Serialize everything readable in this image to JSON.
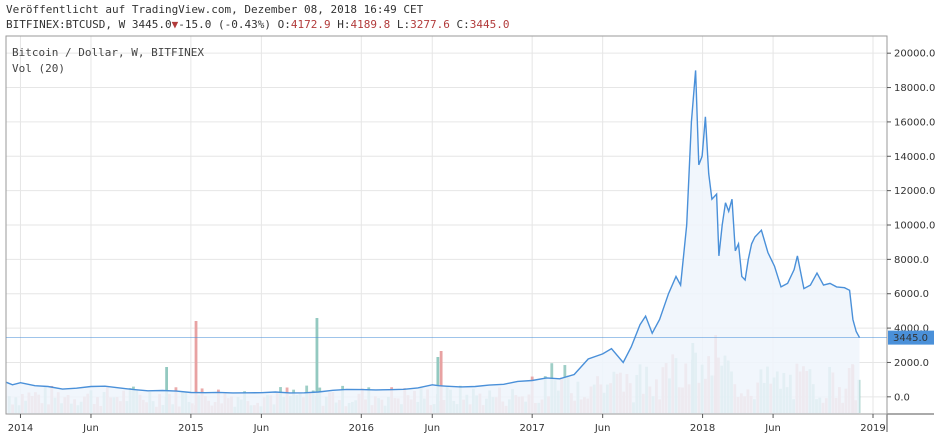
{
  "header": {
    "published": "Veröffentlicht auf TradingView.com, Dezember 08, 2018 16:49 CET",
    "symbol": "BITFINEX:BTCUSD",
    "interval": "W",
    "last": "3445.0",
    "change": "-15.0",
    "change_pct": "(-0.43%)",
    "open_label": "O:",
    "open": "4172.9",
    "high_label": "H:",
    "high": "4189.8",
    "low_label": "L:",
    "low": "3277.6",
    "close_label": "C:",
    "close": "3445.0"
  },
  "colors": {
    "line": "#4a90d9",
    "area": "#eef4fb",
    "vol_up": "#93c9c0",
    "vol_down": "#e8a2a2",
    "price_badge": "#4a90d9",
    "grid": "#e6e6e6"
  },
  "chart_data": {
    "type": "line",
    "title": "Bitcoin / Dollar, W, BITFINEX",
    "indicator": "Vol (20)",
    "ylim": [
      -1000,
      21000
    ],
    "y_ticks": [
      "20000.0",
      "18000.0",
      "16000.0",
      "14000.0",
      "12000.0",
      "10000.0",
      "8000.0",
      "6000.0",
      "4000.0",
      "2000.0",
      "0.0"
    ],
    "y_tick_values": [
      20000,
      18000,
      16000,
      14000,
      12000,
      10000,
      8000,
      6000,
      4000,
      2000,
      0
    ],
    "x_ticks": [
      "2014",
      "Jun",
      "2015",
      "Jun",
      "2016",
      "Jun",
      "2017",
      "Jun",
      "2018",
      "Jun",
      "2019"
    ],
    "x_tick_dates": [
      "2014-01-01",
      "2014-06-01",
      "2015-01-01",
      "2015-06-01",
      "2016-01-01",
      "2016-06-01",
      "2017-01-01",
      "2017-06-01",
      "2018-01-01",
      "2018-06-01",
      "2019-01-01"
    ],
    "x_range": [
      "2013-12-01",
      "2019-01-31"
    ],
    "current_price": 3445.0,
    "current_price_label": "3445.0",
    "price_series": [
      [
        "2013-12-01",
        850
      ],
      [
        "2013-12-15",
        700
      ],
      [
        "2014-01-01",
        820
      ],
      [
        "2014-02-01",
        650
      ],
      [
        "2014-03-01",
        600
      ],
      [
        "2014-04-01",
        450
      ],
      [
        "2014-05-01",
        500
      ],
      [
        "2014-06-01",
        600
      ],
      [
        "2014-07-01",
        620
      ],
      [
        "2014-08-01",
        520
      ],
      [
        "2014-09-01",
        420
      ],
      [
        "2014-10-01",
        350
      ],
      [
        "2014-11-01",
        370
      ],
      [
        "2014-12-01",
        330
      ],
      [
        "2015-01-01",
        250
      ],
      [
        "2015-02-01",
        240
      ],
      [
        "2015-03-01",
        260
      ],
      [
        "2015-04-01",
        230
      ],
      [
        "2015-05-01",
        235
      ],
      [
        "2015-06-01",
        240
      ],
      [
        "2015-07-01",
        280
      ],
      [
        "2015-08-01",
        230
      ],
      [
        "2015-09-01",
        235
      ],
      [
        "2015-10-01",
        280
      ],
      [
        "2015-11-01",
        380
      ],
      [
        "2015-12-01",
        430
      ],
      [
        "2016-01-01",
        420
      ],
      [
        "2016-02-01",
        400
      ],
      [
        "2016-03-01",
        415
      ],
      [
        "2016-04-01",
        440
      ],
      [
        "2016-05-01",
        520
      ],
      [
        "2016-06-01",
        700
      ],
      [
        "2016-06-15",
        650
      ],
      [
        "2016-07-01",
        620
      ],
      [
        "2016-08-01",
        580
      ],
      [
        "2016-09-01",
        600
      ],
      [
        "2016-10-01",
        680
      ],
      [
        "2016-11-01",
        730
      ],
      [
        "2016-12-01",
        900
      ],
      [
        "2017-01-01",
        950
      ],
      [
        "2017-02-01",
        1100
      ],
      [
        "2017-03-01",
        1050
      ],
      [
        "2017-04-01",
        1300
      ],
      [
        "2017-05-01",
        2200
      ],
      [
        "2017-06-01",
        2500
      ],
      [
        "2017-06-20",
        2800
      ],
      [
        "2017-07-15",
        2000
      ],
      [
        "2017-08-01",
        2900
      ],
      [
        "2017-08-20",
        4200
      ],
      [
        "2017-09-01",
        4700
      ],
      [
        "2017-09-15",
        3700
      ],
      [
        "2017-10-01",
        4500
      ],
      [
        "2017-10-20",
        6000
      ],
      [
        "2017-11-05",
        7000
      ],
      [
        "2017-11-15",
        6500
      ],
      [
        "2017-11-28",
        10000
      ],
      [
        "2017-12-08",
        16000
      ],
      [
        "2017-12-17",
        19000
      ],
      [
        "2017-12-24",
        13500
      ],
      [
        "2017-12-31",
        14000
      ],
      [
        "2018-01-07",
        16300
      ],
      [
        "2018-01-14",
        13000
      ],
      [
        "2018-01-21",
        11500
      ],
      [
        "2018-01-31",
        11800
      ],
      [
        "2018-02-05",
        8200
      ],
      [
        "2018-02-12",
        10000
      ],
      [
        "2018-02-19",
        11300
      ],
      [
        "2018-02-26",
        10800
      ],
      [
        "2018-03-05",
        11500
      ],
      [
        "2018-03-12",
        8500
      ],
      [
        "2018-03-19",
        8900
      ],
      [
        "2018-03-26",
        7000
      ],
      [
        "2018-04-02",
        6800
      ],
      [
        "2018-04-09",
        8000
      ],
      [
        "2018-04-16",
        8900
      ],
      [
        "2018-04-23",
        9300
      ],
      [
        "2018-05-07",
        9700
      ],
      [
        "2018-05-21",
        8400
      ],
      [
        "2018-06-04",
        7600
      ],
      [
        "2018-06-18",
        6400
      ],
      [
        "2018-07-02",
        6600
      ],
      [
        "2018-07-16",
        7400
      ],
      [
        "2018-07-23",
        8200
      ],
      [
        "2018-08-06",
        6300
      ],
      [
        "2018-08-20",
        6500
      ],
      [
        "2018-09-03",
        7200
      ],
      [
        "2018-09-17",
        6500
      ],
      [
        "2018-10-01",
        6600
      ],
      [
        "2018-10-15",
        6400
      ],
      [
        "2018-11-01",
        6350
      ],
      [
        "2018-11-12",
        6200
      ],
      [
        "2018-11-19",
        4500
      ],
      [
        "2018-11-26",
        3800
      ],
      [
        "2018-12-03",
        3445
      ]
    ]
  }
}
